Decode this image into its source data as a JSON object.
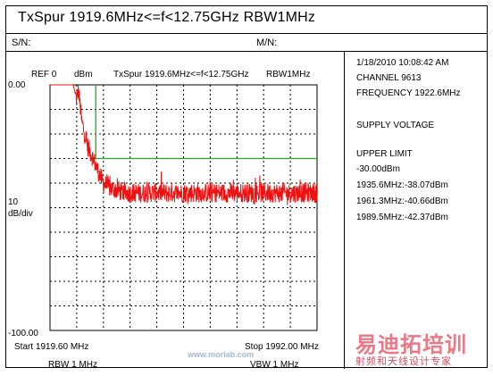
{
  "header": {
    "title": "TxSpur 1919.6MHz<=f<12.75GHz   RBW1MHz",
    "sn_label": "S/N:",
    "mn_label": "M/N:"
  },
  "plot": {
    "ref_label": "REF  0",
    "ref_unit": "dBm",
    "inner_title": "TxSpur 1919.6MHz<=f<12.75GHz",
    "inner_rbw": "RBW1MHz",
    "top_value": "0.00",
    "scale_value": "10",
    "scale_unit": "dB/div",
    "bottom_value": "-100.00",
    "start_label": "Start  1919.60 MHz",
    "stop_label": "Stop  1992.00 MHz",
    "rbw_label": "RBW  1 MHz",
    "vbw_label": "VBW  1 MHz"
  },
  "info": {
    "datetime": "1/18/2010  10:08:42 AM",
    "channel": "CHANNEL   9613",
    "frequency": "FREQUENCY 1922.6MHz",
    "supply": "SUPPLY VOLTAGE",
    "upper_limit": "UPPER LIMIT",
    "limit_value": " -30.00dBm",
    "peaks": [
      "1935.6MHz:-38.07dBm",
      "1961.3MHz:-40.66dBm",
      "1989.5MHz:-42.37dBm"
    ]
  },
  "watermark": {
    "cn_main": "易迪拓培训",
    "cn_sub": "射频和天线设计专家",
    "url": "www.morlab.com"
  },
  "chart_data": {
    "type": "line",
    "title": "TxSpur 1919.6MHz<=f<12.75GHz",
    "xlim": [
      1919.6,
      1992.0
    ],
    "ylim": [
      -100,
      0
    ],
    "grid": true,
    "limit_line": {
      "segments": [
        {
          "x": [
            1932.0,
            1932.0
          ],
          "y": [
            0,
            -30
          ]
        },
        {
          "x": [
            1932.0,
            1992.0
          ],
          "y": [
            -30,
            -30
          ]
        }
      ],
      "color": "#22aa22"
    },
    "trace": {
      "color": "#ee1111",
      "shape_points": [
        {
          "x": 1919.6,
          "y": 0
        },
        {
          "x": 1925.9,
          "y": 0
        },
        {
          "x": 1926.8,
          "y": -6
        },
        {
          "x": 1927.3,
          "y": -2
        },
        {
          "x": 1928.2,
          "y": -15
        },
        {
          "x": 1929.0,
          "y": -20
        },
        {
          "x": 1929.8,
          "y": -25
        },
        {
          "x": 1931.0,
          "y": -29
        },
        {
          "x": 1932.3,
          "y": -34
        },
        {
          "x": 1934.0,
          "y": -40
        },
        {
          "x": 1936.0,
          "y": -42
        },
        {
          "x": 1940.0,
          "y": -44
        },
        {
          "x": 1950.0,
          "y": -44
        },
        {
          "x": 1960.0,
          "y": -44
        },
        {
          "x": 1970.0,
          "y": -44
        },
        {
          "x": 1980.0,
          "y": -44
        },
        {
          "x": 1992.0,
          "y": -44
        }
      ],
      "noise_db": 4
    },
    "color_accent": "#ee1111"
  }
}
